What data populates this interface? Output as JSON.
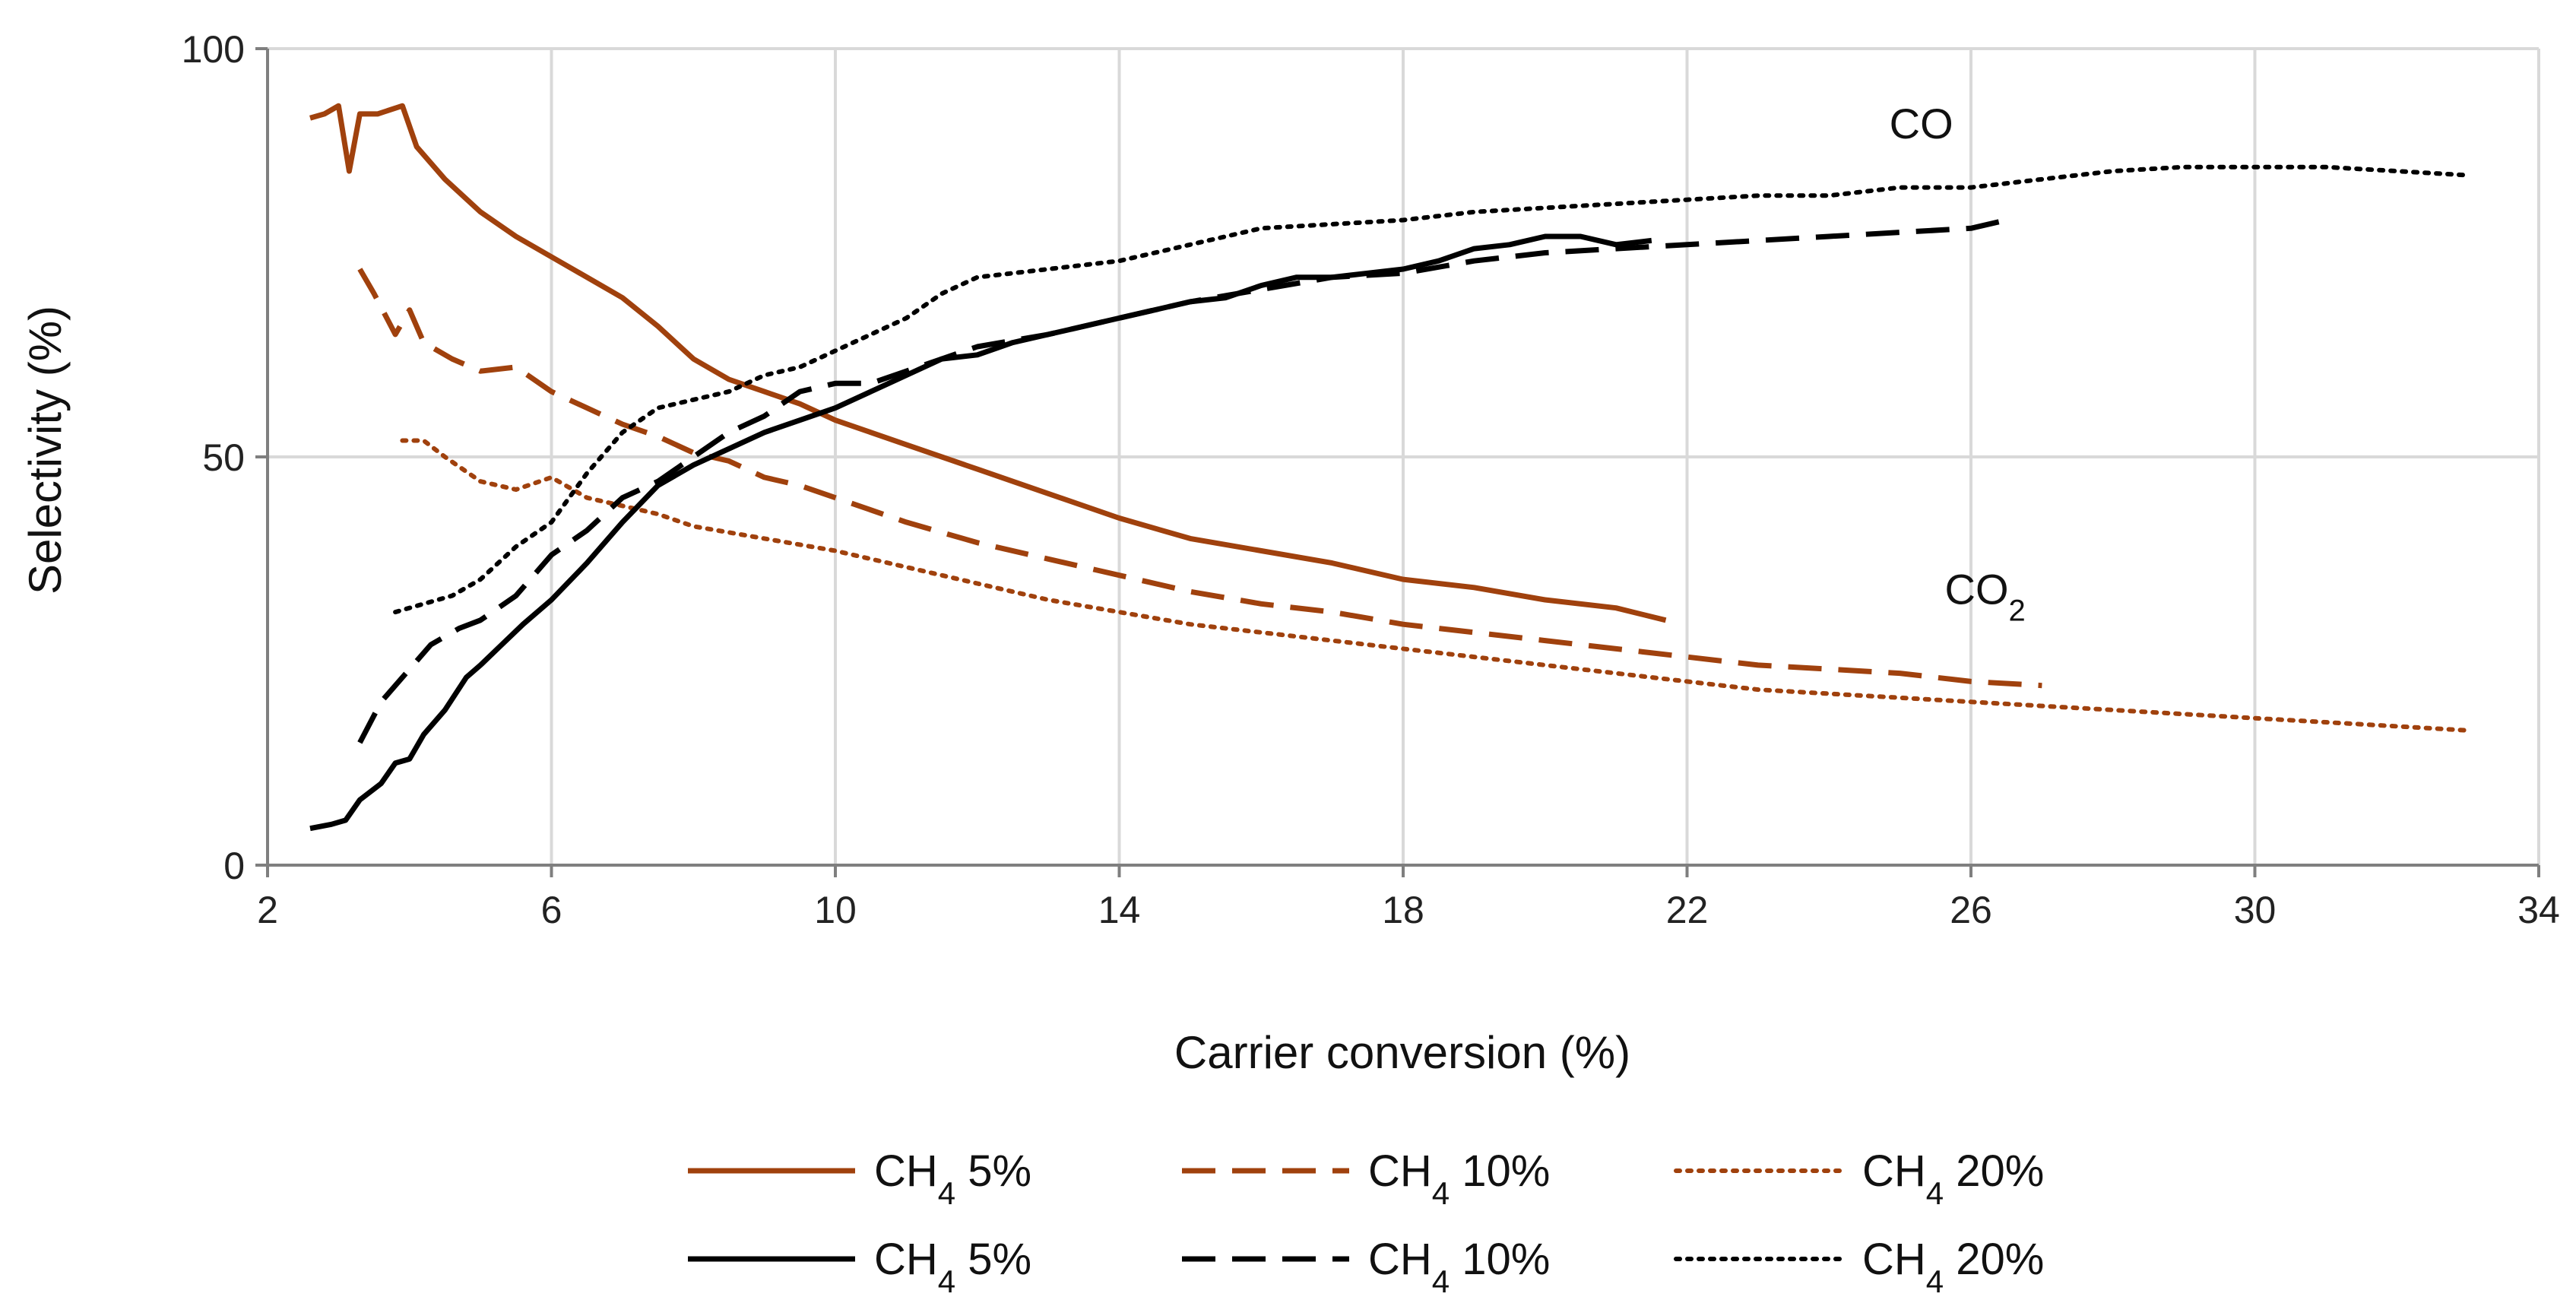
{
  "chart_data": {
    "type": "line",
    "title": "",
    "xlabel": "Carrier conversion (%)",
    "ylabel": "Selectivity (%)",
    "xlim": [
      2,
      34
    ],
    "ylim": [
      0,
      100
    ],
    "xticks": [
      2,
      6,
      10,
      14,
      18,
      22,
      26,
      30,
      34
    ],
    "yticks": [
      0,
      50,
      100
    ],
    "grid": true,
    "legend_position": "bottom",
    "annotations": [
      {
        "id": "co",
        "text": "CO",
        "x": 25.3,
        "y": 89
      },
      {
        "id": "co2",
        "base": "CO",
        "sub": "2",
        "x": 26.2,
        "y": 32
      }
    ],
    "series": [
      {
        "name": "CH₄ 5%",
        "group": "CO2",
        "color": "#A0410D",
        "style": "solid",
        "points": [
          [
            2.6,
            91.5
          ],
          [
            2.8,
            92
          ],
          [
            3.0,
            93
          ],
          [
            3.15,
            85
          ],
          [
            3.3,
            92
          ],
          [
            3.55,
            92
          ],
          [
            3.9,
            93
          ],
          [
            4.1,
            88
          ],
          [
            4.5,
            84
          ],
          [
            5.0,
            80
          ],
          [
            5.5,
            77
          ],
          [
            6.0,
            74.5
          ],
          [
            6.5,
            72
          ],
          [
            7.0,
            69.5
          ],
          [
            7.5,
            66
          ],
          [
            8.0,
            62
          ],
          [
            8.5,
            59.5
          ],
          [
            9.0,
            58
          ],
          [
            9.5,
            56.5
          ],
          [
            10.0,
            54.5
          ],
          [
            10.5,
            53
          ],
          [
            11.0,
            51.5
          ],
          [
            12.0,
            48.5
          ],
          [
            13.0,
            45.5
          ],
          [
            14.0,
            42.5
          ],
          [
            15.0,
            40
          ],
          [
            16.0,
            38.5
          ],
          [
            17.0,
            37
          ],
          [
            18.0,
            35
          ],
          [
            19.0,
            34
          ],
          [
            20.0,
            32.5
          ],
          [
            21.0,
            31.5
          ],
          [
            21.7,
            30
          ]
        ]
      },
      {
        "name": "CH₄ 10%",
        "group": "CO2",
        "color": "#A0410D",
        "style": "dashed",
        "points": [
          [
            3.3,
            73
          ],
          [
            3.5,
            70
          ],
          [
            3.8,
            65
          ],
          [
            4.0,
            68
          ],
          [
            4.2,
            64
          ],
          [
            4.6,
            62
          ],
          [
            5.0,
            60.5
          ],
          [
            5.5,
            61
          ],
          [
            6.0,
            58
          ],
          [
            6.5,
            56
          ],
          [
            7.0,
            54
          ],
          [
            7.5,
            52.5
          ],
          [
            8.0,
            50.5
          ],
          [
            8.5,
            49.5
          ],
          [
            9.0,
            47.5
          ],
          [
            9.5,
            46.5
          ],
          [
            10.0,
            45
          ],
          [
            11.0,
            42
          ],
          [
            12.0,
            39.5
          ],
          [
            13.0,
            37.5
          ],
          [
            14.0,
            35.5
          ],
          [
            15.0,
            33.5
          ],
          [
            16.0,
            32
          ],
          [
            17.0,
            31
          ],
          [
            18.0,
            29.5
          ],
          [
            19.0,
            28.5
          ],
          [
            20.0,
            27.5
          ],
          [
            21.0,
            26.5
          ],
          [
            22.0,
            25.5
          ],
          [
            23.0,
            24.5
          ],
          [
            24.0,
            24
          ],
          [
            25.0,
            23.5
          ],
          [
            26.0,
            22.5
          ],
          [
            27.0,
            22
          ]
        ]
      },
      {
        "name": "CH₄ 20%",
        "group": "CO2",
        "color": "#A0410D",
        "style": "dotted",
        "points": [
          [
            3.9,
            52
          ],
          [
            4.2,
            52
          ],
          [
            4.5,
            50
          ],
          [
            5.0,
            47
          ],
          [
            5.5,
            46
          ],
          [
            6.0,
            47.5
          ],
          [
            6.5,
            45
          ],
          [
            7.0,
            44
          ],
          [
            7.5,
            43
          ],
          [
            8.0,
            41.5
          ],
          [
            9.0,
            40
          ],
          [
            10.0,
            38.5
          ],
          [
            11.0,
            36.5
          ],
          [
            12.0,
            34.5
          ],
          [
            13.0,
            32.5
          ],
          [
            14.0,
            31
          ],
          [
            15.0,
            29.5
          ],
          [
            16.0,
            28.5
          ],
          [
            17.0,
            27.5
          ],
          [
            18.0,
            26.5
          ],
          [
            19.0,
            25.5
          ],
          [
            20.0,
            24.5
          ],
          [
            21.0,
            23.5
          ],
          [
            22.0,
            22.5
          ],
          [
            23.0,
            21.5
          ],
          [
            24.0,
            21
          ],
          [
            25.0,
            20.5
          ],
          [
            26.0,
            20
          ],
          [
            27.0,
            19.5
          ],
          [
            28.0,
            19
          ],
          [
            29.0,
            18.5
          ],
          [
            30.0,
            18
          ],
          [
            31.0,
            17.5
          ],
          [
            32.0,
            17
          ],
          [
            33.0,
            16.5
          ]
        ]
      },
      {
        "name": "CH₄ 5%",
        "group": "CO",
        "color": "#000000",
        "style": "solid",
        "points": [
          [
            2.6,
            4.5
          ],
          [
            2.9,
            5
          ],
          [
            3.1,
            5.5
          ],
          [
            3.3,
            8
          ],
          [
            3.6,
            10
          ],
          [
            3.8,
            12.5
          ],
          [
            4.0,
            13
          ],
          [
            4.2,
            16
          ],
          [
            4.5,
            19
          ],
          [
            4.8,
            23
          ],
          [
            5.0,
            24.5
          ],
          [
            5.3,
            27
          ],
          [
            5.6,
            29.5
          ],
          [
            6.0,
            32.5
          ],
          [
            6.5,
            37
          ],
          [
            7.0,
            42
          ],
          [
            7.5,
            46.5
          ],
          [
            8.0,
            49
          ],
          [
            8.5,
            51
          ],
          [
            9.0,
            53
          ],
          [
            9.5,
            54.5
          ],
          [
            10.0,
            56
          ],
          [
            10.5,
            58
          ],
          [
            11.0,
            60
          ],
          [
            11.5,
            62
          ],
          [
            12.0,
            62.5
          ],
          [
            12.5,
            64
          ],
          [
            13.0,
            65
          ],
          [
            13.5,
            66
          ],
          [
            14.0,
            67
          ],
          [
            14.5,
            68
          ],
          [
            15.0,
            69
          ],
          [
            15.5,
            69.5
          ],
          [
            16.0,
            71
          ],
          [
            16.5,
            72
          ],
          [
            17.0,
            72
          ],
          [
            17.5,
            72.5
          ],
          [
            18.0,
            73
          ],
          [
            18.5,
            74
          ],
          [
            19.0,
            75.5
          ],
          [
            19.5,
            76
          ],
          [
            20.0,
            77
          ],
          [
            20.5,
            77
          ],
          [
            21.0,
            76
          ],
          [
            21.5,
            76.5
          ]
        ]
      },
      {
        "name": "CH₄ 10%",
        "group": "CO",
        "color": "#000000",
        "style": "dashed",
        "points": [
          [
            3.3,
            15
          ],
          [
            3.6,
            20
          ],
          [
            4.0,
            24
          ],
          [
            4.3,
            27
          ],
          [
            4.7,
            29
          ],
          [
            5.0,
            30
          ],
          [
            5.5,
            33
          ],
          [
            6.0,
            38
          ],
          [
            6.5,
            41
          ],
          [
            7.0,
            45
          ],
          [
            7.5,
            47
          ],
          [
            8.0,
            50
          ],
          [
            8.5,
            53
          ],
          [
            9.0,
            55
          ],
          [
            9.5,
            58
          ],
          [
            10.0,
            59
          ],
          [
            10.5,
            59
          ],
          [
            11.0,
            60.5
          ],
          [
            12.0,
            63.5
          ],
          [
            13.0,
            65
          ],
          [
            14.0,
            67
          ],
          [
            15.0,
            69
          ],
          [
            16.0,
            70.5
          ],
          [
            17.0,
            72
          ],
          [
            18.0,
            72.5
          ],
          [
            19.0,
            74
          ],
          [
            20.0,
            75
          ],
          [
            21.0,
            75.5
          ],
          [
            22.0,
            76
          ],
          [
            23.0,
            76.5
          ],
          [
            24.0,
            77
          ],
          [
            25.0,
            77.5
          ],
          [
            26.0,
            78
          ],
          [
            26.5,
            79
          ]
        ]
      },
      {
        "name": "CH₄ 20%",
        "group": "CO",
        "color": "#000000",
        "style": "dotted",
        "points": [
          [
            3.8,
            31
          ],
          [
            4.2,
            32
          ],
          [
            4.6,
            33
          ],
          [
            5.0,
            35
          ],
          [
            5.5,
            39
          ],
          [
            6.0,
            42
          ],
          [
            6.5,
            48
          ],
          [
            7.0,
            53
          ],
          [
            7.5,
            56
          ],
          [
            8.0,
            57
          ],
          [
            8.5,
            58
          ],
          [
            9.0,
            60
          ],
          [
            9.5,
            61
          ],
          [
            10.0,
            63
          ],
          [
            10.5,
            65
          ],
          [
            11.0,
            67
          ],
          [
            11.5,
            70
          ],
          [
            12.0,
            72
          ],
          [
            13.0,
            73
          ],
          [
            14.0,
            74
          ],
          [
            15.0,
            76
          ],
          [
            16.0,
            78
          ],
          [
            17.0,
            78.5
          ],
          [
            18.0,
            79
          ],
          [
            19.0,
            80
          ],
          [
            20.0,
            80.5
          ],
          [
            21.0,
            81
          ],
          [
            22.0,
            81.5
          ],
          [
            23.0,
            82
          ],
          [
            24.0,
            82
          ],
          [
            25.0,
            83
          ],
          [
            26.0,
            83
          ],
          [
            27.0,
            84
          ],
          [
            28.0,
            85
          ],
          [
            29.0,
            85.5
          ],
          [
            30.0,
            85.5
          ],
          [
            31.0,
            85.5
          ],
          [
            32.0,
            85
          ],
          [
            33.0,
            84.5
          ]
        ]
      }
    ],
    "legend": [
      {
        "base": "CH",
        "sub": "4",
        "suffix": " 5%",
        "color": "#A0410D",
        "style": "solid"
      },
      {
        "base": "CH",
        "sub": "4",
        "suffix": " 10%",
        "color": "#A0410D",
        "style": "dashed"
      },
      {
        "base": "CH",
        "sub": "4",
        "suffix": " 20%",
        "color": "#A0410D",
        "style": "dotted"
      },
      {
        "base": "CH",
        "sub": "4",
        "suffix": " 5%",
        "color": "#000000",
        "style": "solid"
      },
      {
        "base": "CH",
        "sub": "4",
        "suffix": " 10%",
        "color": "#000000",
        "style": "dashed"
      },
      {
        "base": "CH",
        "sub": "4",
        "suffix": " 20%",
        "color": "#000000",
        "style": "dotted"
      }
    ]
  }
}
